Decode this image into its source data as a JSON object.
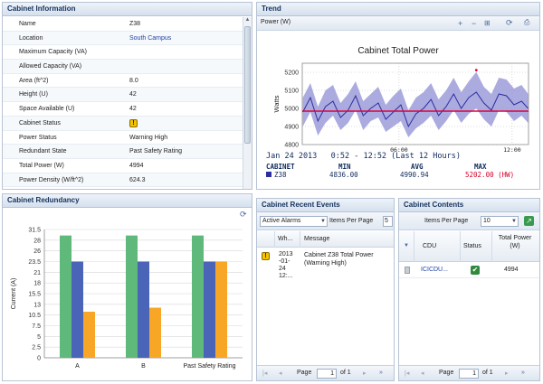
{
  "cabinet_info": {
    "title": "Cabinet Information",
    "rows": [
      {
        "label": "Name",
        "value": "Z38"
      },
      {
        "label": "Location",
        "value": "South Campus"
      },
      {
        "label": "Maximum Capacity (VA)",
        "value": ""
      },
      {
        "label": "Allowed Capacity (VA)",
        "value": ""
      },
      {
        "label": "Area (ft^2)",
        "value": "8.0"
      },
      {
        "label": "Height (U)",
        "value": "42"
      },
      {
        "label": "Space Available (U)",
        "value": "42"
      },
      {
        "label": "Cabinet Status",
        "value": ""
      },
      {
        "label": "Power Status",
        "value": "Warning High"
      },
      {
        "label": "Redundant State",
        "value": "Past Safety Rating"
      },
      {
        "label": "Total Power (W)",
        "value": "4994"
      },
      {
        "label": "Power Density (W/ft^2)",
        "value": "624.3"
      }
    ],
    "status_icon": "!"
  },
  "trend": {
    "title": "Trend",
    "toolbar_label": "Power (W)",
    "chart_title": "Cabinet Total Power",
    "summary_title": "Jan 24 2013   0:52 - 12:52 (Last 12 Hours)",
    "summary_headers": [
      "CABINET",
      "MIN",
      "AVG",
      "MAX"
    ],
    "summary_row": {
      "cabinet": "Z38",
      "min": "4836.00",
      "avg": "4990.94",
      "max": "5202.00 (HW)"
    },
    "colors": {
      "series": "#2c2e9e",
      "band": "#8f8fd6",
      "threshold": "#e0003c",
      "max_text": "#d4002a"
    }
  },
  "redundancy": {
    "title": "Cabinet Redundancy",
    "colors": {
      "green": "#5eb97b",
      "blue": "#4a64b8",
      "orange": "#f7a626"
    }
  },
  "events": {
    "title": "Cabinet Recent Events",
    "filter_value": "Active Alarms",
    "per_page_label": "Items Per Page",
    "per_page_value": "5",
    "col_when": "Wh...",
    "col_message": "Message",
    "rows": [
      {
        "when": "2013\n-01-\n24\n12:...",
        "message": "Cabinet Z38 Total Power (Warning High)"
      }
    ],
    "pager": {
      "page_label": "Page",
      "page_value": "1",
      "of_label": "of 1"
    }
  },
  "contents": {
    "title": "Cabinet Contents",
    "per_page_label": "Items Per Page",
    "per_page_value": "10",
    "columns": [
      "CDU",
      "Status",
      "Total Power (W)"
    ],
    "rows": [
      {
        "cdu": "ICICDU...",
        "status": "ok",
        "power": "4994"
      }
    ],
    "pager": {
      "page_label": "Page",
      "page_value": "1",
      "of_label": "of 1"
    }
  },
  "chart_data": [
    {
      "type": "line",
      "title": "Cabinet Total Power",
      "ylabel": "Watts",
      "xlabel": "",
      "ylim": [
        4800,
        5250
      ],
      "yticks": [
        4800,
        4900,
        5000,
        5100,
        5200
      ],
      "xticks": [
        {
          "label": "06:00",
          "x": 6
        },
        {
          "label": "12:00",
          "x": 12
        }
      ],
      "xlim": [
        0.87,
        12.87
      ],
      "threshold": 4985,
      "grid": true,
      "series": [
        {
          "x": [
            0.9,
            1.3,
            1.7,
            2.1,
            2.5,
            2.9,
            3.3,
            3.7,
            4.1,
            4.5,
            4.9,
            5.3,
            5.7,
            6.1,
            6.5,
            6.9,
            7.3,
            7.7,
            8.1,
            8.5,
            8.9,
            9.3,
            9.7,
            10.1,
            10.5,
            10.9,
            11.3,
            11.7,
            12.1,
            12.5,
            12.85
          ],
          "y": [
            4980,
            5060,
            4930,
            5010,
            5040,
            4950,
            4990,
            5070,
            4960,
            5000,
            5030,
            4940,
            4980,
            5020,
            4900,
            4970,
            5000,
            5050,
            4960,
            5010,
            5080,
            5000,
            5060,
            5090,
            5030,
            4990,
            5080,
            5070,
            5020,
            5040,
            5000
          ],
          "min": [
            4900,
            4980,
            4850,
            4920,
            4960,
            4880,
            4920,
            4990,
            4880,
            4930,
            4950,
            4870,
            4900,
            4930,
            4840,
            4890,
            4920,
            4960,
            4880,
            4930,
            4990,
            4920,
            4970,
            5000,
            4940,
            4900,
            4990,
            4980,
            4930,
            4960,
            4920
          ],
          "max": [
            5060,
            5140,
            5010,
            5100,
            5130,
            5030,
            5080,
            5150,
            5040,
            5080,
            5120,
            5020,
            5070,
            5110,
            4990,
            5060,
            5090,
            5140,
            5050,
            5100,
            5170,
            5090,
            5150,
            5202,
            5120,
            5080,
            5170,
            5160,
            5110,
            5130,
            5080
          ]
        }
      ]
    },
    {
      "type": "bar",
      "title": "",
      "xlabel": "",
      "ylabel": "Current (A)",
      "ylim": [
        0,
        32
      ],
      "yticks": [
        "0",
        "2.5",
        "5",
        "7.5",
        "10.5",
        "13",
        "15.5",
        "18",
        "21",
        "23.5",
        "26",
        "28",
        "31.5"
      ],
      "categories": [
        "A",
        "B",
        "Past Safety Rating"
      ],
      "series": [
        {
          "values": [
            30.5,
            30.5,
            30.5
          ]
        },
        {
          "values": [
            24,
            24,
            24
          ]
        },
        {
          "values": [
            11.5,
            12.5,
            24
          ]
        }
      ]
    }
  ]
}
